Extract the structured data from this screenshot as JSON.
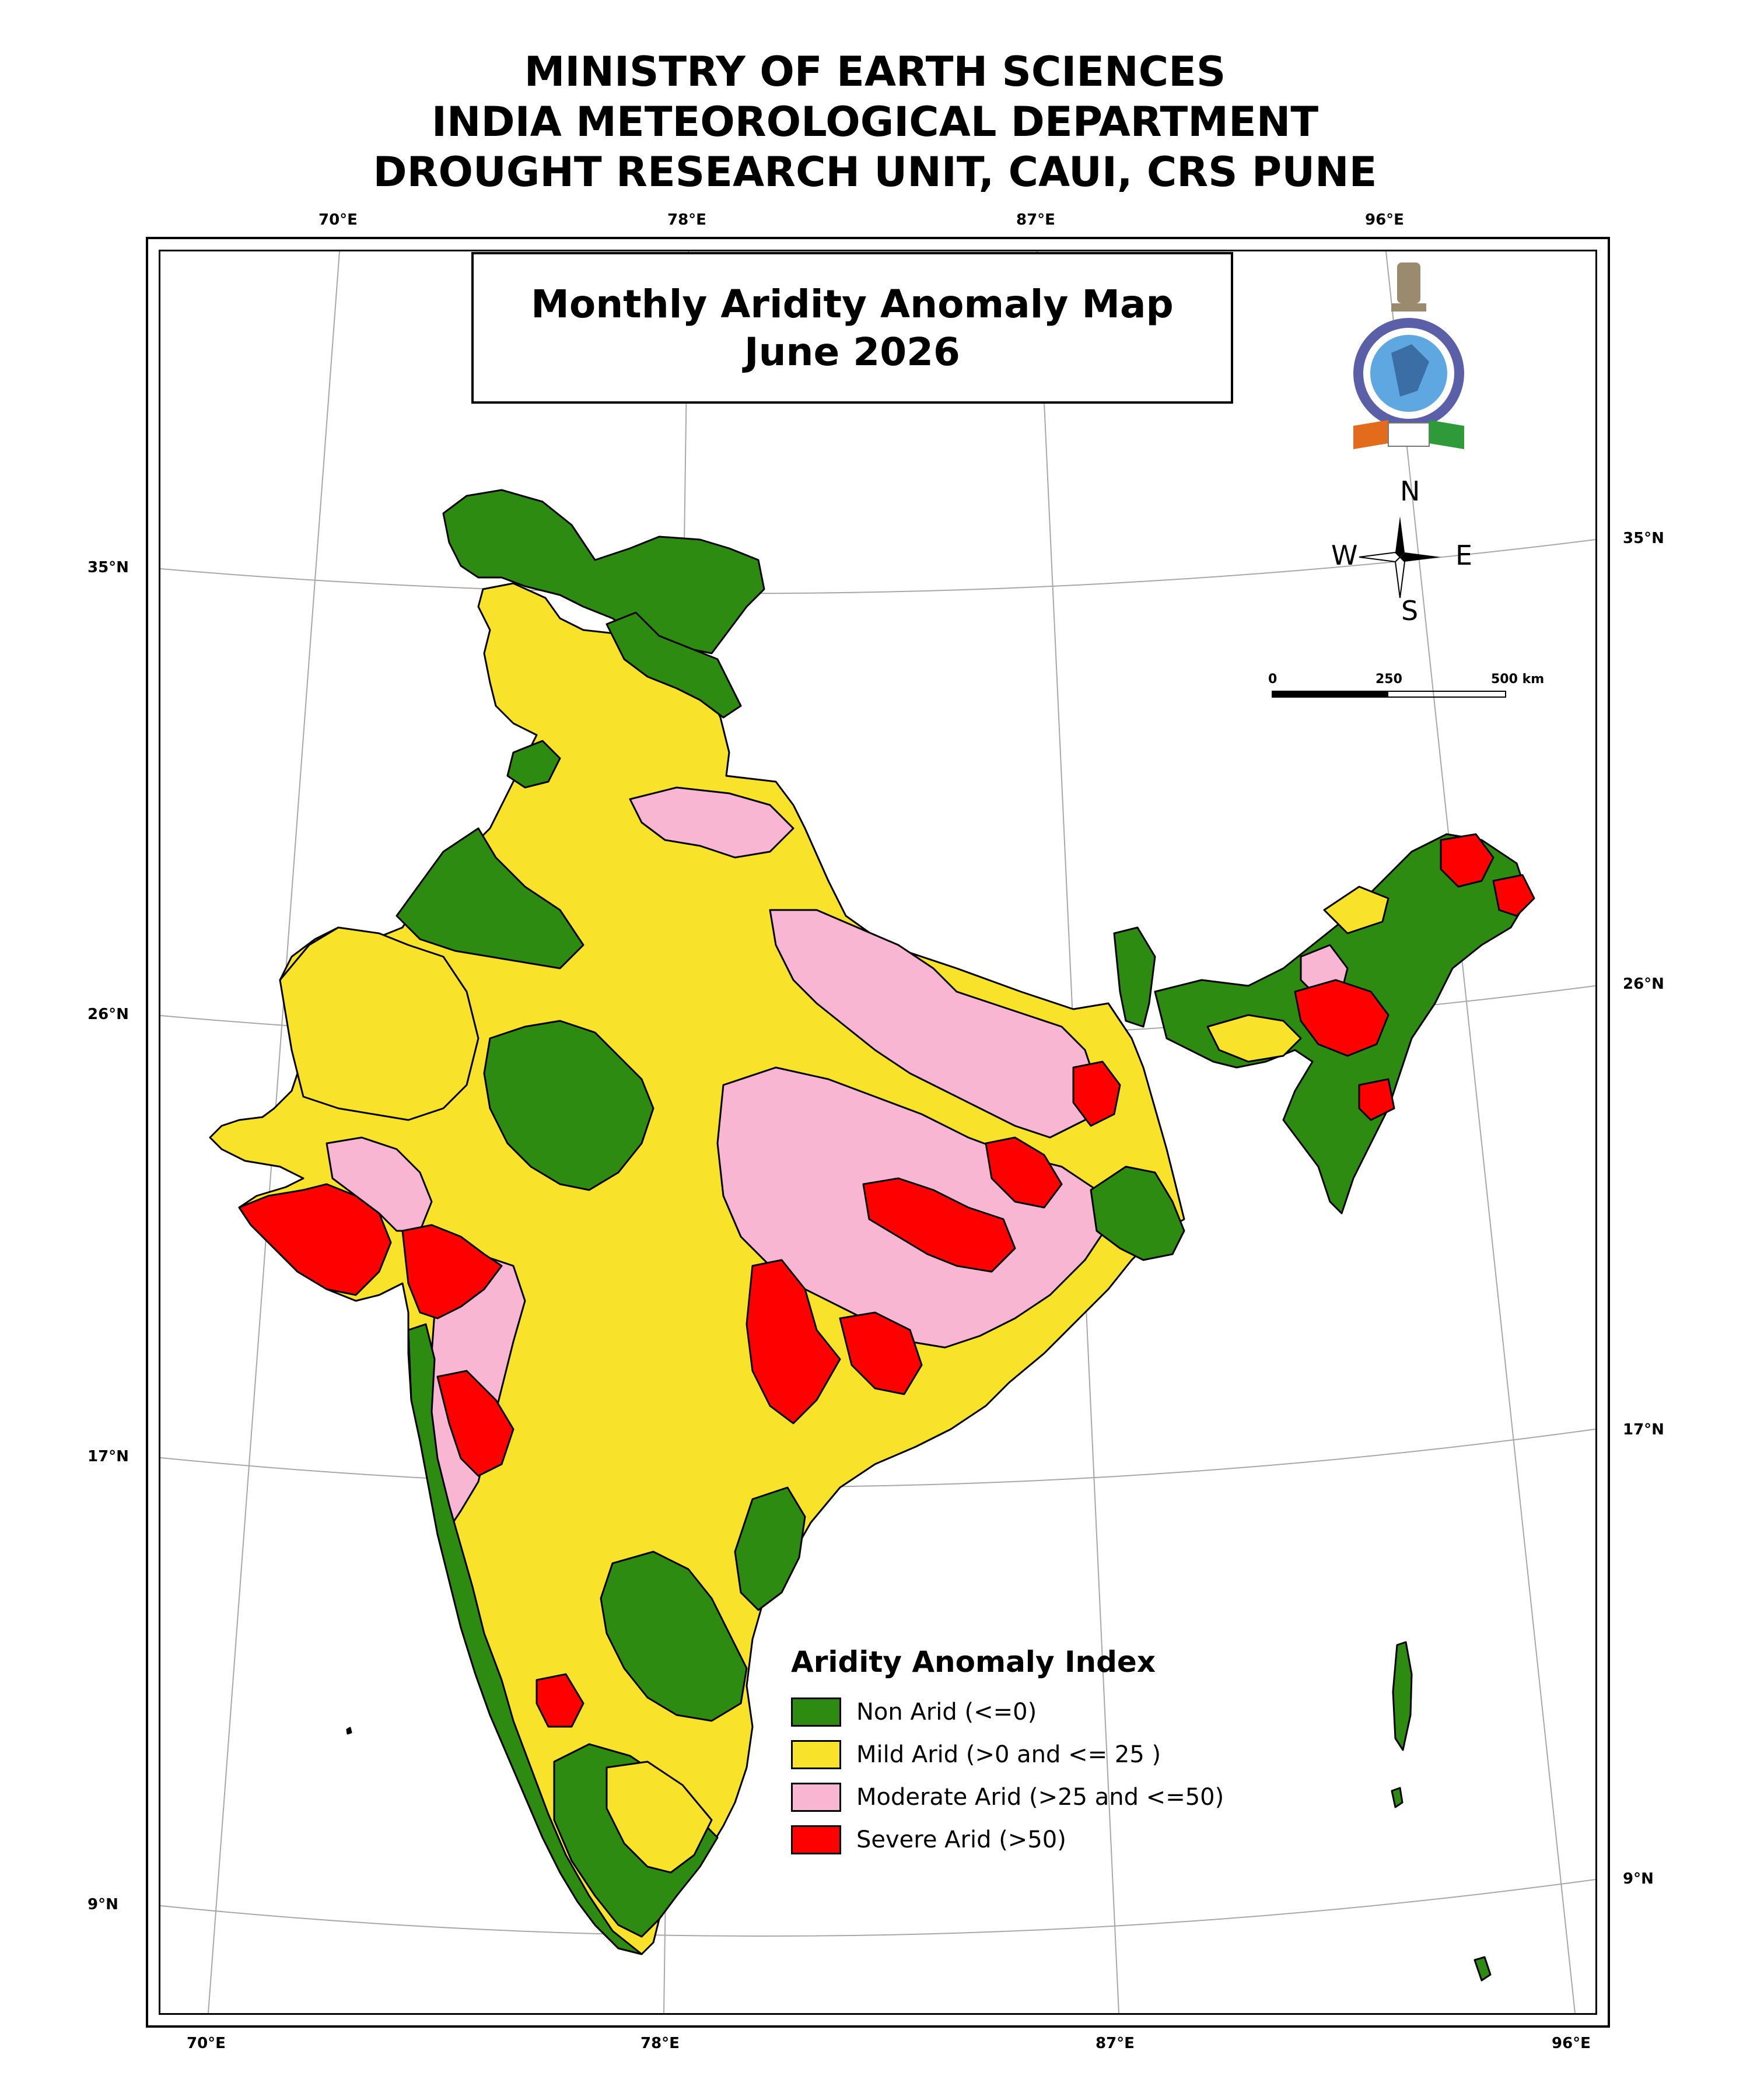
{
  "header": {
    "line1": "MINISTRY OF EARTH SCIENCES",
    "line2": "INDIA METEOROLOGICAL DEPARTMENT",
    "line3": "DROUGHT RESEARCH UNIT, CAUI, CRS PUNE"
  },
  "map_title": {
    "line1": "Monthly Aridity Anomaly Map",
    "line2": "June  2026"
  },
  "graticule": {
    "top_longitudes": [
      "70°E",
      "78°E",
      "87°E",
      "96°E"
    ],
    "bottom_longitudes": [
      "70°E",
      "78°E",
      "87°E",
      "96°E"
    ],
    "left_latitudes": [
      "35°N",
      "26°N",
      "17°N",
      "9°N"
    ],
    "right_latitudes": [
      "35°N",
      "26°N",
      "17°N",
      "9°N"
    ]
  },
  "compass": {
    "north": "N",
    "south": "S",
    "east": "E",
    "west": "W"
  },
  "scale_bar": {
    "labels": [
      "0",
      "250",
      "500 km"
    ]
  },
  "emblem": {
    "name": "imd-emblem"
  },
  "legend": {
    "title": "Aridity Anomaly Index",
    "items": [
      {
        "label": "Non Arid (<=0)",
        "color": "#2e8b12"
      },
      {
        "label": "Mild Arid (>0 and <= 25 )",
        "color": "#f9e22a"
      },
      {
        "label": "Moderate Arid (>25 and <=50)",
        "color": "#f9b6d2"
      },
      {
        "label": "Severe Arid (>50)",
        "color": "#ff0000"
      }
    ]
  },
  "colors": {
    "non_arid": "#2e8b12",
    "mild_arid": "#f9e22a",
    "moderate_arid": "#f9b6d2",
    "severe_arid": "#ff0000",
    "graticule": "#a0a0a0",
    "outline": "#000000"
  }
}
